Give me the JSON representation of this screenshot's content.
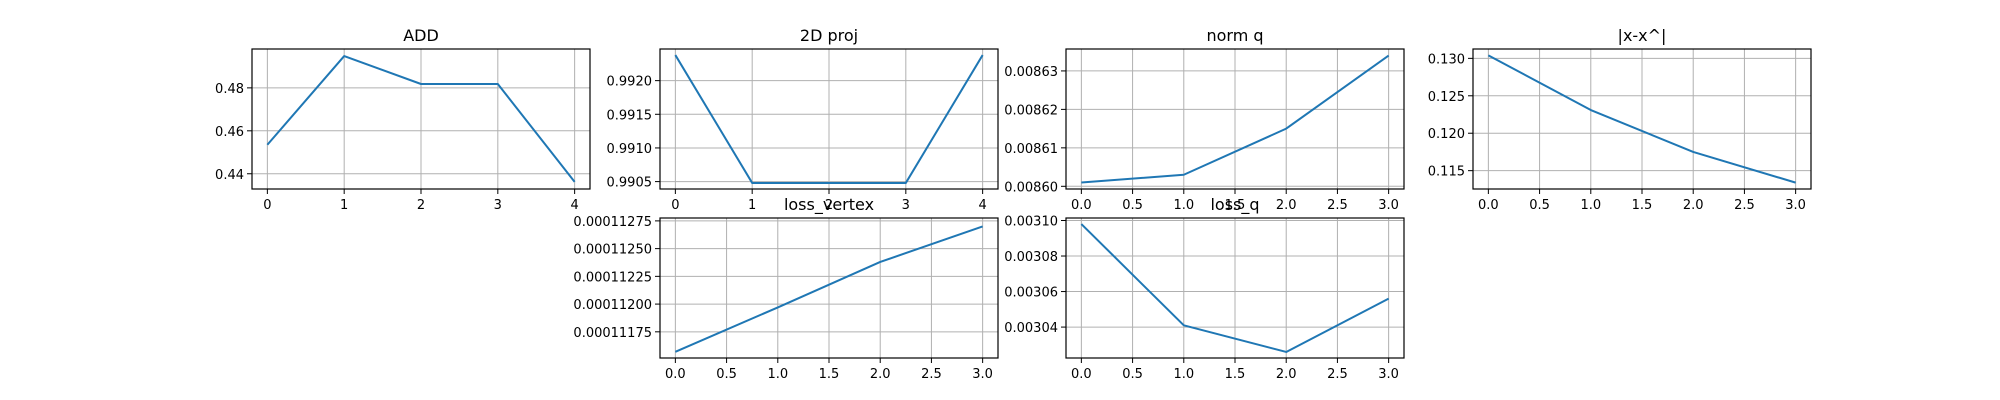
{
  "chart_data": [
    {
      "type": "line",
      "title": "ADD",
      "x": [
        0,
        1,
        2,
        3,
        4
      ],
      "series": [
        {
          "values": [
            0.4535,
            0.4948,
            0.4818,
            0.4818,
            0.4362
          ]
        }
      ],
      "xlim": [
        -0.2,
        4.2
      ],
      "ylim": [
        0.4329,
        0.4981
      ],
      "xticks": [
        0,
        1,
        2,
        3,
        4
      ],
      "xtick_labels": [
        "0",
        "1",
        "2",
        "3",
        "4"
      ],
      "yticks": [
        0.44,
        0.46,
        0.48
      ],
      "ytick_labels": [
        "0.44",
        "0.46",
        "0.48"
      ],
      "grid": true,
      "color": "#1f77b4"
    },
    {
      "type": "line",
      "title": "2D proj",
      "x": [
        0,
        1,
        2,
        3,
        4
      ],
      "series": [
        {
          "values": [
            0.99238,
            0.99048,
            0.99048,
            0.99048,
            0.99238
          ]
        }
      ],
      "xlim": [
        -0.2,
        4.2
      ],
      "ylim": [
        0.99039,
        0.99247
      ],
      "xticks": [
        0,
        1,
        2,
        3,
        4
      ],
      "xtick_labels": [
        "0",
        "1",
        "2",
        "3",
        "4"
      ],
      "yticks": [
        0.9905,
        0.991,
        0.9915,
        0.992
      ],
      "ytick_labels": [
        "0.9905",
        "0.9910",
        "0.9915",
        "0.9920"
      ],
      "grid": true,
      "color": "#1f77b4"
    },
    {
      "type": "line",
      "title": "norm q",
      "x": [
        0,
        1,
        2,
        3
      ],
      "series": [
        {
          "values": [
            0.008601,
            0.008603,
            0.008615,
            0.008634
          ]
        }
      ],
      "xlim": [
        -0.15,
        3.15
      ],
      "ylim": [
        0.0085993,
        0.0086357
      ],
      "xticks": [
        0,
        0.5,
        1,
        1.5,
        2,
        2.5,
        3
      ],
      "xtick_labels": [
        "0.0",
        "0.5",
        "1.0",
        "1.5",
        "2.0",
        "2.5",
        "3.0"
      ],
      "yticks": [
        0.0086,
        0.00861,
        0.00862,
        0.00863
      ],
      "ytick_labels": [
        "0.00860",
        "0.00861",
        "0.00862",
        "0.00863"
      ],
      "grid": true,
      "color": "#1f77b4"
    },
    {
      "type": "line",
      "title": "|x-x^|",
      "x": [
        0,
        1,
        2,
        3
      ],
      "series": [
        {
          "values": [
            0.1304,
            0.1231,
            0.1175,
            0.1134
          ]
        }
      ],
      "xlim": [
        -0.15,
        3.15
      ],
      "ylim": [
        0.11255,
        0.13125
      ],
      "xticks": [
        0,
        0.5,
        1,
        1.5,
        2,
        2.5,
        3
      ],
      "xtick_labels": [
        "0.0",
        "0.5",
        "1.0",
        "1.5",
        "2.0",
        "2.5",
        "3.0"
      ],
      "yticks": [
        0.115,
        0.12,
        0.125,
        0.13
      ],
      "ytick_labels": [
        "0.115",
        "0.120",
        "0.125",
        "0.130"
      ],
      "grid": true,
      "color": "#1f77b4"
    },
    {
      "type": "line",
      "title": "loss_vertex",
      "x": [
        0,
        1,
        2,
        3
      ],
      "series": [
        {
          "values": [
            0.00011157,
            0.00011197,
            0.00011238,
            0.0001127
          ]
        }
      ],
      "xlim": [
        -0.15,
        3.15
      ],
      "ylim": [
        0.000111514,
        0.000112776
      ],
      "xticks": [
        0,
        0.5,
        1,
        1.5,
        2,
        2.5,
        3
      ],
      "xtick_labels": [
        "0.0",
        "0.5",
        "1.0",
        "1.5",
        "2.0",
        "2.5",
        "3.0"
      ],
      "yticks": [
        0.00011175,
        0.000112,
        0.00011225,
        0.0001125,
        0.00011275
      ],
      "ytick_labels": [
        "0.00011175",
        "0.00011200",
        "0.00011225",
        "0.00011250",
        "0.00011275"
      ],
      "grid": true,
      "color": "#1f77b4"
    },
    {
      "type": "line",
      "title": "loss_q",
      "x": [
        0,
        1,
        2,
        3
      ],
      "series": [
        {
          "values": [
            0.003098,
            0.003041,
            0.003026,
            0.003056
          ]
        }
      ],
      "xlim": [
        -0.15,
        3.15
      ],
      "ylim": [
        0.0030226,
        0.0031014
      ],
      "xticks": [
        0,
        0.5,
        1,
        1.5,
        2,
        2.5,
        3
      ],
      "xtick_labels": [
        "0.0",
        "0.5",
        "1.0",
        "1.5",
        "2.0",
        "2.5",
        "3.0"
      ],
      "yticks": [
        0.00304,
        0.00306,
        0.00308,
        0.0031
      ],
      "ytick_labels": [
        "0.00304",
        "0.00306",
        "0.00308",
        "0.00310"
      ],
      "grid": true,
      "color": "#1f77b4"
    }
  ]
}
